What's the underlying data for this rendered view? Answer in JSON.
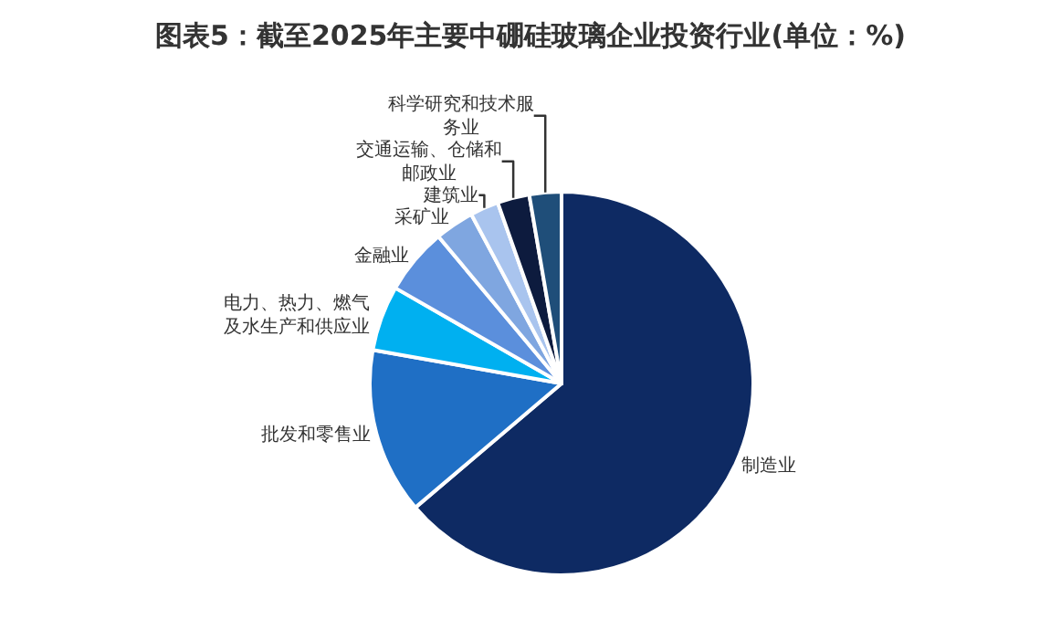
{
  "chart_data": {
    "type": "pie",
    "title": "图表5：截至2025年主要中硼硅玻璃企业投资行业(单位：%)",
    "categories": [
      "制造业",
      "批发和零售业",
      "电力、热力、燃气及水生产和供应业",
      "金融业",
      "采矿业",
      "建筑业",
      "交通运输、仓储和邮政业",
      "科学研究和技术服务业"
    ],
    "values": [
      63.8,
      14,
      5.5,
      5.6,
      3.3,
      2.4,
      2.7,
      2.7
    ],
    "colors": [
      "#0e2a63",
      "#1f6fc5",
      "#00b0f0",
      "#5b8fdc",
      "#7fa6e0",
      "#a9c4ee",
      "#0d1b3e",
      "#1f4e79"
    ],
    "legend": false
  }
}
